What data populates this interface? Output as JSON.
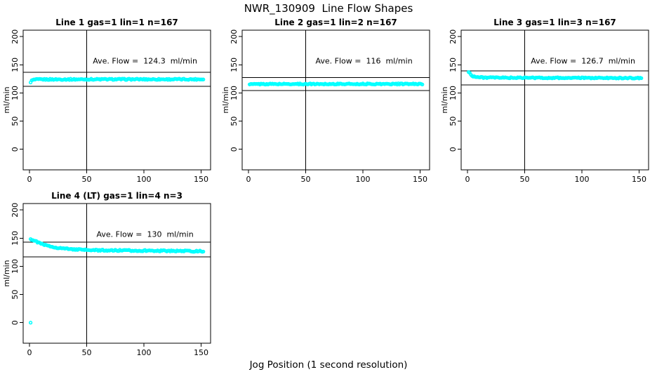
{
  "figure": {
    "title": "NWR_130909  Line Flow Shapes",
    "xlabel": "Jog Position (1 second resolution)",
    "background_color": "#ffffff",
    "point_color": "#00ffff",
    "axis_color": "#000000"
  },
  "chart_data": [
    {
      "type": "scatter",
      "title": "Line 1 gas=1 lin=1 n=167",
      "annotation": "Ave. Flow =  124.3  ml/min",
      "ave_flow_ml_min": 124.3,
      "ylabel": "ml/min",
      "x_ticks": [
        0,
        50,
        100,
        150
      ],
      "y_ticks": [
        0,
        50,
        100,
        150,
        200
      ],
      "xlim": [
        -5.5,
        158.3
      ],
      "ylim": [
        -36.5,
        211.5
      ],
      "vline_x": 50,
      "hlines_y": [
        136.7,
        111.9
      ],
      "series_keypoints": [
        [
          1,
          119.5
        ],
        [
          2,
          121.8
        ],
        [
          3,
          123.0
        ],
        [
          5,
          123.8
        ],
        [
          10,
          124.1
        ],
        [
          60,
          124.3
        ],
        [
          152,
          124.3
        ]
      ],
      "extra_points": [],
      "x_start": 1,
      "x_end": 152,
      "jitter": 1.1,
      "seed": 1,
      "row": 0,
      "col": 0
    },
    {
      "type": "scatter",
      "title": "Line 2 gas=1 lin=2 n=167",
      "annotation": "Ave. Flow =  116  ml/min",
      "ave_flow_ml_min": 116,
      "ylabel": "ml/min",
      "x_ticks": [
        0,
        50,
        100,
        150
      ],
      "y_ticks": [
        0,
        50,
        100,
        150,
        200
      ],
      "xlim": [
        -5.5,
        158.3
      ],
      "ylim": [
        -36.5,
        211.5
      ],
      "vline_x": 50,
      "hlines_y": [
        127.6,
        104.4
      ],
      "series_keypoints": [
        [
          1,
          115.2
        ],
        [
          4,
          115.6
        ],
        [
          15,
          115.9
        ],
        [
          80,
          116.0
        ],
        [
          152,
          116.0
        ]
      ],
      "extra_points": [],
      "x_start": 1,
      "x_end": 152,
      "jitter": 1.0,
      "seed": 2,
      "row": 0,
      "col": 1
    },
    {
      "type": "scatter",
      "title": "Line 3 gas=1 lin=3 n=167",
      "annotation": "Ave. Flow =  126.7  ml/min",
      "ave_flow_ml_min": 126.7,
      "ylabel": "ml/min",
      "x_ticks": [
        0,
        50,
        100,
        150
      ],
      "y_ticks": [
        0,
        50,
        100,
        150,
        200
      ],
      "xlim": [
        -5.5,
        158.3
      ],
      "ylim": [
        -36.5,
        211.5
      ],
      "vline_x": 50,
      "hlines_y": [
        139.4,
        114.0
      ],
      "series_keypoints": [
        [
          1,
          137.5
        ],
        [
          2,
          135.3
        ],
        [
          3,
          132.4
        ],
        [
          5,
          129.8
        ],
        [
          8,
          128.3
        ],
        [
          12,
          127.6
        ],
        [
          20,
          127.2
        ],
        [
          60,
          126.9
        ],
        [
          152,
          126.5
        ]
      ],
      "extra_points": [],
      "x_start": 1,
      "x_end": 152,
      "jitter": 1.0,
      "seed": 3,
      "row": 0,
      "col": 2
    },
    {
      "type": "scatter",
      "title": "Line 4 (LT) gas=1 lin=4 n=3",
      "annotation": "Ave. Flow =  130  ml/min",
      "ave_flow_ml_min": 130,
      "ylabel": "ml/min",
      "x_ticks": [
        0,
        50,
        100,
        150
      ],
      "y_ticks": [
        0,
        50,
        100,
        150,
        200
      ],
      "xlim": [
        -5.5,
        158.3
      ],
      "ylim": [
        -36.5,
        211.5
      ],
      "vline_x": 50,
      "hlines_y": [
        143.0,
        117.0
      ],
      "series_keypoints": [
        [
          1,
          148.5
        ],
        [
          2,
          147.6
        ],
        [
          4,
          145.8
        ],
        [
          6,
          144.0
        ],
        [
          9,
          141.2
        ],
        [
          12,
          138.8
        ],
        [
          16,
          136.3
        ],
        [
          20,
          134.6
        ],
        [
          25,
          133.0
        ],
        [
          30,
          131.7
        ],
        [
          38,
          130.3
        ],
        [
          48,
          129.2
        ],
        [
          60,
          128.6
        ],
        [
          90,
          128.0
        ],
        [
          120,
          127.6
        ],
        [
          152,
          126.8
        ]
      ],
      "extra_points": [
        [
          1,
          0
        ]
      ],
      "x_start": 1,
      "x_end": 152,
      "jitter": 1.15,
      "seed": 4,
      "row": 1,
      "col": 0
    }
  ]
}
